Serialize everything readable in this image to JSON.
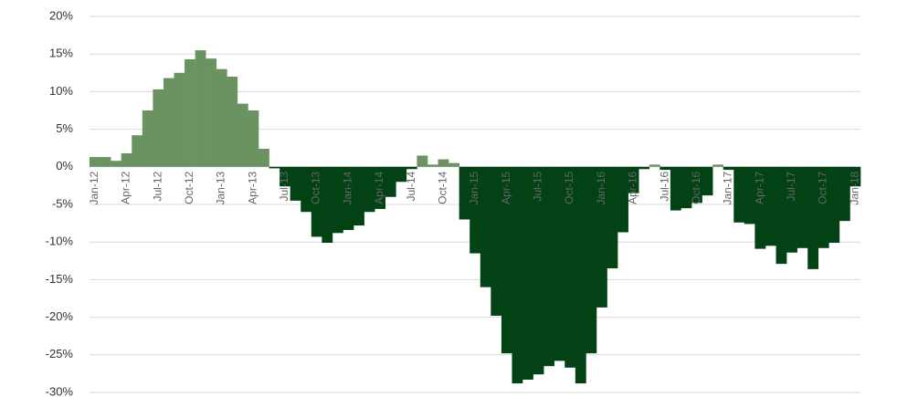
{
  "chart_data": {
    "type": "bar",
    "categories": [
      "Jan-12",
      null,
      null,
      "Apr-12",
      null,
      null,
      "Jul-12",
      null,
      null,
      "Oct-12",
      null,
      null,
      "Jan-13",
      null,
      null,
      "Apr-13",
      null,
      null,
      "Jul-13",
      null,
      null,
      "Oct-13",
      null,
      null,
      "Jan-14",
      null,
      null,
      "Apr-14",
      null,
      null,
      "Jul-14",
      null,
      null,
      "Oct-14",
      null,
      null,
      "Jan-15",
      null,
      null,
      "Apr-15",
      null,
      null,
      "Jul-15",
      null,
      null,
      "Oct-15",
      null,
      null,
      "Jan-16",
      null,
      null,
      "Apr-16",
      null,
      null,
      "Jul-16",
      null,
      null,
      "Oct-16",
      null,
      null,
      "Jan-17",
      null,
      null,
      "Apr-17",
      null,
      null,
      "Jul-17",
      null,
      null,
      "Oct-17",
      null,
      null,
      "Jan-18"
    ],
    "values": [
      1.3,
      1.3,
      0.8,
      1.8,
      4.2,
      7.5,
      10.3,
      11.8,
      12.5,
      14.3,
      15.5,
      14.4,
      13.0,
      12.0,
      8.4,
      7.5,
      2.4,
      -0.2,
      -2.6,
      -4.5,
      -6.0,
      -9.3,
      -10.1,
      -8.8,
      -8.4,
      -7.8,
      -6.0,
      -5.6,
      -4.0,
      -2.0,
      -0.3,
      1.5,
      0.3,
      1.0,
      0.5,
      -7.0,
      -11.5,
      -16.0,
      -19.8,
      -24.8,
      -28.8,
      -28.3,
      -27.6,
      -26.5,
      -25.8,
      -26.7,
      -28.8,
      -24.8,
      -18.7,
      -13.5,
      -8.7,
      -3.5,
      -0.3,
      0.3,
      -0.4,
      -5.8,
      -5.5,
      -4.8,
      -3.8,
      0.3,
      -0.4,
      -7.4,
      -7.6,
      -10.9,
      -10.5,
      -12.9,
      -11.4,
      -10.8,
      -13.6,
      -10.8,
      -10.1,
      -7.2,
      -2.6
    ],
    "positive_color": "#6b9362",
    "negative_color": "#034214",
    "ylim": [
      -30,
      20
    ],
    "yticks": [
      {
        "value": -30,
        "label": "-30%"
      },
      {
        "value": -25,
        "label": "-25%"
      },
      {
        "value": -20,
        "label": "-20%"
      },
      {
        "value": -15,
        "label": "-15%"
      },
      {
        "value": -10,
        "label": "-10%"
      },
      {
        "value": -5,
        "label": "-5%"
      },
      {
        "value": 0,
        "label": "0%"
      },
      {
        "value": 5,
        "label": "5%"
      },
      {
        "value": 10,
        "label": "10%"
      },
      {
        "value": 15,
        "label": "15%"
      },
      {
        "value": 20,
        "label": "20%"
      }
    ],
    "grid": true
  }
}
